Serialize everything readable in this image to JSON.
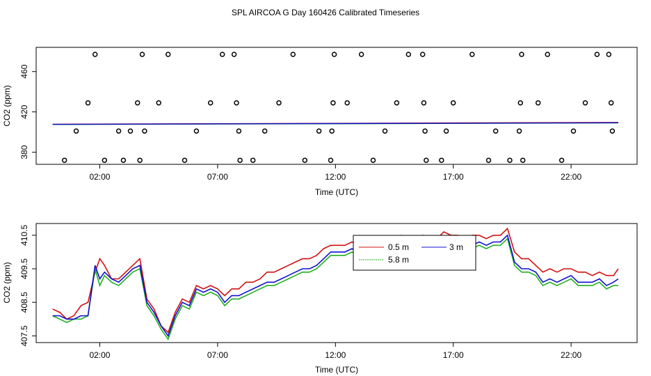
{
  "title": "SPL AIRCOA G  Day 160426  Calibrated Timeseries",
  "chart_data": [
    {
      "type": "scatter",
      "xlabel": "Time (UTC)",
      "ylabel": "CO2 (ppm)",
      "xlim": [
        -0.7,
        24.8
      ],
      "ylim": [
        368,
        484
      ],
      "xticks": [
        2,
        7,
        12,
        17,
        22
      ],
      "xtick_labels": [
        "02:00",
        "07:00",
        "12:00",
        "17:00",
        "22:00"
      ],
      "yticks": [
        380,
        420,
        460
      ],
      "ytick_labels": [
        "380",
        "420",
        "460"
      ],
      "points": {
        "x": [
          0.5,
          1.0,
          1.5,
          1.8,
          2.2,
          2.8,
          3.0,
          3.3,
          3.6,
          3.7,
          3.8,
          3.9,
          4.5,
          4.9,
          5.6,
          6.1,
          6.7,
          7.2,
          7.7,
          7.8,
          7.9,
          7.95,
          8.5,
          9.0,
          9.6,
          10.2,
          10.7,
          11.3,
          11.8,
          11.85,
          11.9,
          11.95,
          12.5,
          13.1,
          13.6,
          14.1,
          14.6,
          15.1,
          15.7,
          15.75,
          15.8,
          15.85,
          16.5,
          16.7,
          17.0,
          17.8,
          18.5,
          18.8,
          19.4,
          19.8,
          19.85,
          19.9,
          19.95,
          20.6,
          21.0,
          21.6,
          22.1,
          22.6,
          23.1,
          23.6,
          23.7,
          23.75
        ],
        "y": [
          372,
          401,
          429,
          477,
          372,
          401,
          372,
          401,
          429,
          372,
          477,
          401,
          429,
          477,
          372,
          401,
          429,
          477,
          477,
          429,
          401,
          372,
          372,
          401,
          429,
          477,
          372,
          401,
          372,
          401,
          429,
          477,
          429,
          477,
          372,
          401,
          429,
          477,
          477,
          429,
          401,
          372,
          372,
          401,
          429,
          477,
          372,
          401,
          372,
          401,
          429,
          477,
          372,
          429,
          477,
          372,
          401,
          429,
          477,
          477,
          429,
          401
        ]
      },
      "series": [
        {
          "color": "#d01010",
          "x": [
            0,
            24
          ],
          "y": [
            407.8,
            409.6
          ]
        },
        {
          "color": "#20b020",
          "x": [
            0,
            24
          ],
          "y": [
            407.5,
            409.0
          ]
        },
        {
          "color": "#1010d0",
          "x": [
            0,
            24
          ],
          "y": [
            407.6,
            409.2
          ]
        }
      ]
    },
    {
      "type": "line",
      "xlabel": "Time (UTC)",
      "ylabel": "CO2 (ppm)",
      "xlim": [
        -0.7,
        24.8
      ],
      "ylim": [
        407.3,
        410.85
      ],
      "xticks": [
        2,
        7,
        12,
        17,
        22
      ],
      "xtick_labels": [
        "02:00",
        "07:00",
        "12:00",
        "17:00",
        "22:00"
      ],
      "yticks": [
        407.5,
        408.5,
        409.5,
        410.5
      ],
      "ytick_labels": [
        "407.5",
        "408.5",
        "409.5",
        "410.5"
      ],
      "legend_position": "top-center",
      "legend": [
        "0.5 m",
        "3 m",
        "5.8 m"
      ],
      "series": [
        {
          "color": "#d01010",
          "x": [
            0,
            0.3,
            0.6,
            0.9,
            1.2,
            1.5,
            1.8,
            2.0,
            2.2,
            2.5,
            2.8,
            3.1,
            3.4,
            3.7,
            4.0,
            4.3,
            4.6,
            4.9,
            5.2,
            5.5,
            5.8,
            6.1,
            6.4,
            6.7,
            7.0,
            7.3,
            7.6,
            7.9,
            8.2,
            8.5,
            8.8,
            9.1,
            9.4,
            9.7,
            10.0,
            10.3,
            10.6,
            10.9,
            11.2,
            11.5,
            11.8,
            12.1,
            12.4,
            12.7,
            13.0,
            13.3,
            13.6,
            13.9,
            14.2,
            14.5,
            14.8,
            15.1,
            15.4,
            15.7,
            16.0,
            16.3,
            16.6,
            16.9,
            17.2,
            17.5,
            17.8,
            18.1,
            18.4,
            18.7,
            19.0,
            19.3,
            19.6,
            19.9,
            20.2,
            20.5,
            20.8,
            21.1,
            21.4,
            21.7,
            22.0,
            22.3,
            22.6,
            22.9,
            23.2,
            23.5,
            23.8,
            24.0
          ],
          "y": [
            408.3,
            408.2,
            408.0,
            408.1,
            408.4,
            408.5,
            409.4,
            409.8,
            409.6,
            409.2,
            409.2,
            409.4,
            409.6,
            409.8,
            408.6,
            408.3,
            407.8,
            407.6,
            408.2,
            408.6,
            408.5,
            409.0,
            408.9,
            409.0,
            408.9,
            408.7,
            408.9,
            408.9,
            409.1,
            409.1,
            409.2,
            409.4,
            409.4,
            409.5,
            409.6,
            409.7,
            409.8,
            409.8,
            409.9,
            410.1,
            410.2,
            410.2,
            410.2,
            410.3,
            410.2,
            410.3,
            410.4,
            410.3,
            410.2,
            410.4,
            410.5,
            410.4,
            410.3,
            410.5,
            410.3,
            410.4,
            410.6,
            410.5,
            410.5,
            410.4,
            410.5,
            410.5,
            410.4,
            410.5,
            410.5,
            410.7,
            410.0,
            409.8,
            409.8,
            409.6,
            409.4,
            409.5,
            409.4,
            409.5,
            409.5,
            409.4,
            409.4,
            409.3,
            409.4,
            409.3,
            409.3,
            409.5
          ]
        },
        {
          "color": "#20b020",
          "x": [
            0,
            0.3,
            0.6,
            0.9,
            1.2,
            1.5,
            1.8,
            2.0,
            2.2,
            2.5,
            2.8,
            3.1,
            3.4,
            3.7,
            4.0,
            4.3,
            4.6,
            4.9,
            5.2,
            5.5,
            5.8,
            6.1,
            6.4,
            6.7,
            7.0,
            7.3,
            7.6,
            7.9,
            8.2,
            8.5,
            8.8,
            9.1,
            9.4,
            9.7,
            10.0,
            10.3,
            10.6,
            10.9,
            11.2,
            11.5,
            11.8,
            12.1,
            12.4,
            12.7,
            13.0,
            13.3,
            13.6,
            13.9,
            14.2,
            14.5,
            14.8,
            15.1,
            15.4,
            15.7,
            16.0,
            16.3,
            16.6,
            16.9,
            17.2,
            17.5,
            17.8,
            18.1,
            18.4,
            18.7,
            19.0,
            19.3,
            19.6,
            19.9,
            20.2,
            20.5,
            20.8,
            21.1,
            21.4,
            21.7,
            22.0,
            22.3,
            22.6,
            22.9,
            23.2,
            23.5,
            23.8,
            24.0
          ],
          "y": [
            408.1,
            408.0,
            407.9,
            408.0,
            408.0,
            408.1,
            409.5,
            409.0,
            409.3,
            409.1,
            409.0,
            409.2,
            409.4,
            409.5,
            408.4,
            408.1,
            407.7,
            407.4,
            408.0,
            408.4,
            408.3,
            408.8,
            408.7,
            408.8,
            408.7,
            408.4,
            408.6,
            408.6,
            408.7,
            408.8,
            408.9,
            409.0,
            409.0,
            409.1,
            409.2,
            409.3,
            409.4,
            409.4,
            409.5,
            409.7,
            409.9,
            409.9,
            409.9,
            410.0,
            409.9,
            410.0,
            410.1,
            410.0,
            409.9,
            410.0,
            410.2,
            410.1,
            409.9,
            410.2,
            410.0,
            410.1,
            410.3,
            410.1,
            410.1,
            410.0,
            410.1,
            410.2,
            410.1,
            410.2,
            410.2,
            410.4,
            409.6,
            409.4,
            409.4,
            409.3,
            409.0,
            409.1,
            409.0,
            409.1,
            409.2,
            409.0,
            409.0,
            409.0,
            409.1,
            408.9,
            409.0,
            409.0
          ]
        },
        {
          "color": "#1010d0",
          "x": [
            0,
            0.3,
            0.6,
            0.9,
            1.2,
            1.5,
            1.8,
            2.0,
            2.2,
            2.5,
            2.8,
            3.1,
            3.4,
            3.7,
            4.0,
            4.3,
            4.6,
            4.9,
            5.2,
            5.5,
            5.8,
            6.1,
            6.4,
            6.7,
            7.0,
            7.3,
            7.6,
            7.9,
            8.2,
            8.5,
            8.8,
            9.1,
            9.4,
            9.7,
            10.0,
            10.3,
            10.6,
            10.9,
            11.2,
            11.5,
            11.8,
            12.1,
            12.4,
            12.7,
            13.0,
            13.3,
            13.6,
            13.9,
            14.2,
            14.5,
            14.8,
            15.1,
            15.4,
            15.7,
            16.0,
            16.3,
            16.6,
            16.9,
            17.2,
            17.5,
            17.8,
            18.1,
            18.4,
            18.7,
            19.0,
            19.3,
            19.6,
            19.9,
            20.2,
            20.5,
            20.8,
            21.1,
            21.4,
            21.7,
            22.0,
            22.3,
            22.6,
            22.9,
            23.2,
            23.5,
            23.8,
            24.0
          ],
          "y": [
            408.1,
            408.1,
            408.0,
            408.0,
            408.1,
            408.1,
            409.6,
            409.2,
            409.4,
            409.2,
            409.1,
            409.3,
            409.5,
            409.6,
            408.5,
            408.2,
            407.8,
            407.5,
            408.1,
            408.5,
            408.4,
            408.9,
            408.8,
            408.9,
            408.8,
            408.5,
            408.7,
            408.7,
            408.8,
            408.9,
            409.0,
            409.1,
            409.1,
            409.2,
            409.3,
            409.4,
            409.5,
            409.5,
            409.6,
            409.8,
            410.0,
            410.0,
            410.0,
            410.1,
            410.0,
            410.1,
            410.2,
            410.1,
            410.0,
            410.1,
            410.3,
            410.2,
            410.0,
            410.3,
            410.1,
            410.2,
            410.4,
            410.2,
            410.2,
            410.1,
            410.2,
            410.3,
            410.2,
            410.3,
            410.3,
            410.5,
            409.7,
            409.5,
            409.5,
            409.4,
            409.1,
            409.2,
            409.1,
            409.2,
            409.3,
            409.1,
            409.1,
            409.1,
            409.2,
            409.0,
            409.1,
            409.2
          ]
        }
      ]
    }
  ]
}
